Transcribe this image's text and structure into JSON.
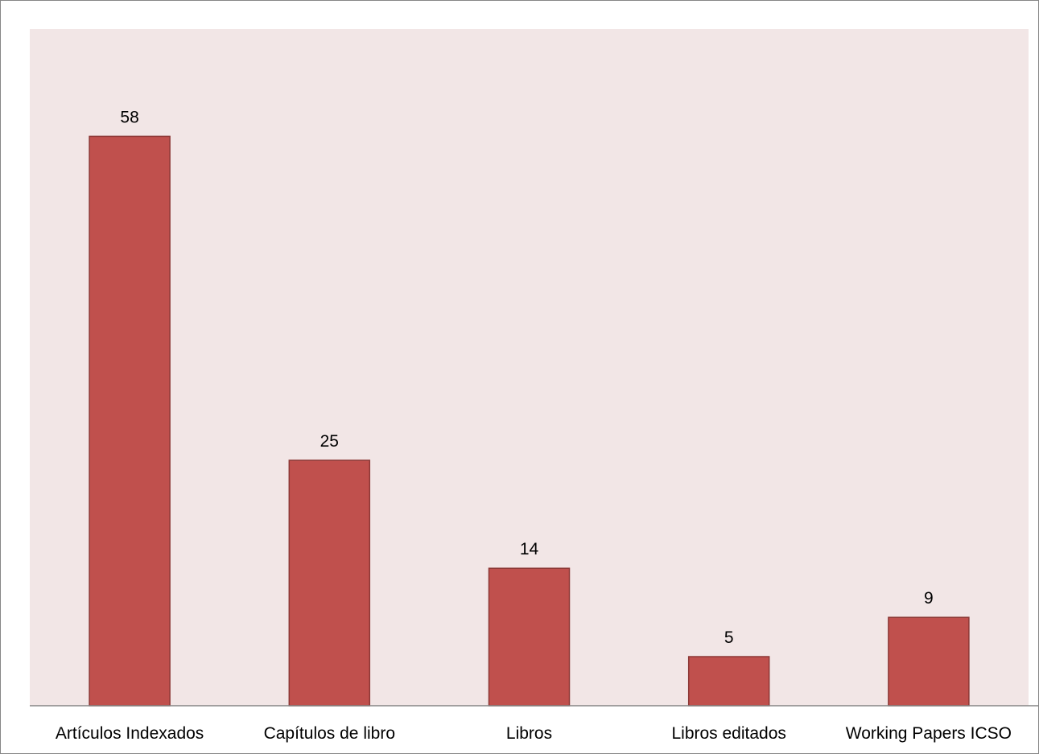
{
  "chart_data": {
    "type": "bar",
    "title": "",
    "xlabel": "",
    "ylabel": "",
    "categories": [
      "Artículos Indexados",
      "Capítulos de libro",
      "Libros",
      "Libros editados",
      "Working Papers ICSO"
    ],
    "values": [
      58,
      25,
      14,
      5,
      9
    ],
    "data_labels": [
      "58",
      "25",
      "14",
      "5",
      "9"
    ],
    "ylim": [
      0,
      66
    ],
    "grid": false,
    "legend": "none",
    "colors": {
      "bar_fill": "#c0504d",
      "bar_stroke": "#8c3836",
      "plot_background": "#f2e6e6",
      "outer_border": "#868686",
      "axis_line": "#868686"
    }
  }
}
